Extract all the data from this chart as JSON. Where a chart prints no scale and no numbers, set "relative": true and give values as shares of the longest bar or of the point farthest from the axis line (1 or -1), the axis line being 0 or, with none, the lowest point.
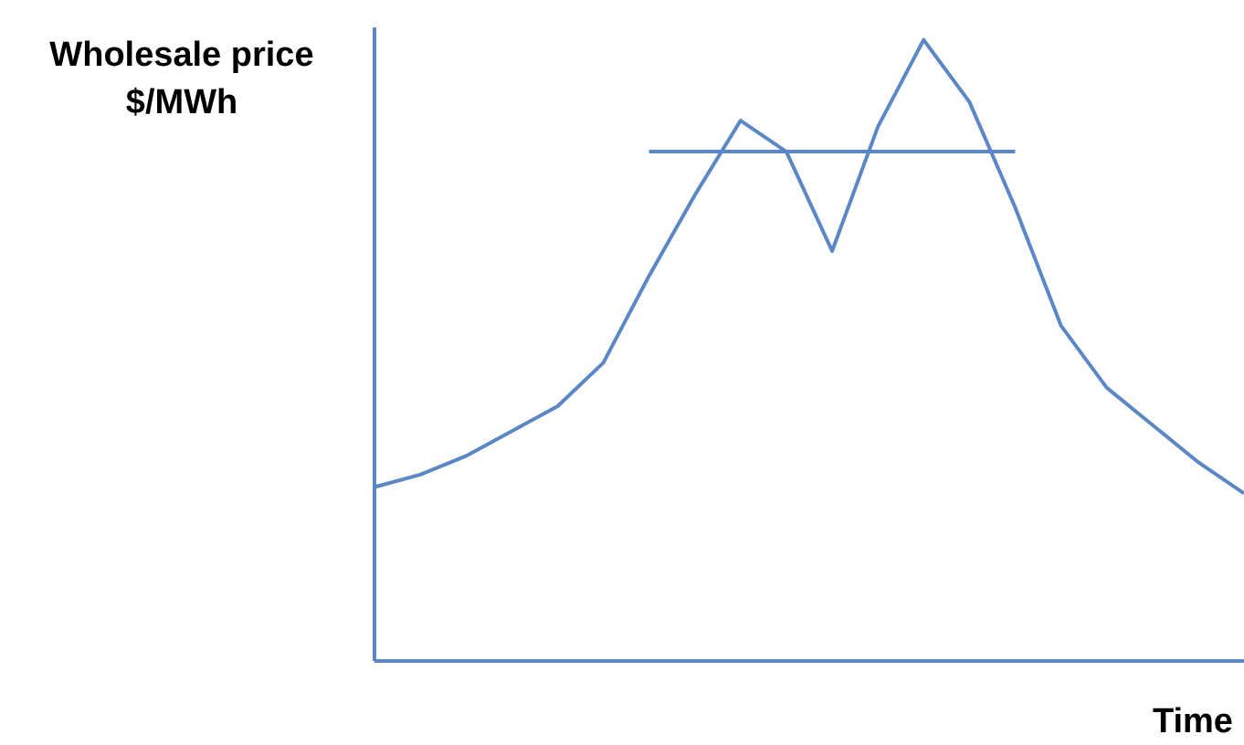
{
  "chart_data": {
    "type": "line",
    "relative": true,
    "ylabel": "Wholesale price $/MWh",
    "xlabel": "Time",
    "marker": "none",
    "grid": false,
    "legend": false,
    "categories": [
      null,
      null,
      null,
      null,
      null,
      null,
      null,
      null,
      null,
      null,
      null,
      null,
      null,
      null,
      null,
      null,
      null,
      null,
      null,
      null
    ],
    "series": [
      {
        "type": "line",
        "color": "#5b87c5",
        "values": [
          0.28,
          0.3,
          0.33,
          0.37,
          0.41,
          0.48,
          0.62,
          0.75,
          0.87,
          0.82,
          0.66,
          0.86,
          1.0,
          0.9,
          0.73,
          0.54,
          0.44,
          0.38,
          0.32,
          0.27
        ]
      },
      {
        "type": "line",
        "color": "#5b87c5",
        "values": [
          null,
          null,
          null,
          null,
          null,
          null,
          0.82,
          0.82,
          0.82,
          0.82,
          0.82,
          0.82,
          0.82,
          0.82,
          0.82,
          null,
          null,
          null,
          null,
          null
        ]
      }
    ]
  }
}
